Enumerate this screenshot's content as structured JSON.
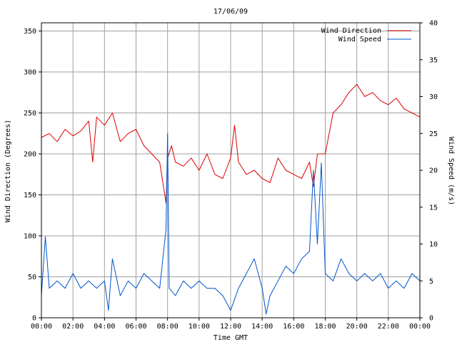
{
  "chart_data": {
    "type": "line",
    "title": "17/06/09",
    "xlabel": "Time GMT",
    "ylabel_left": "Wind Direction (Degrees)",
    "ylabel_right": "Wind Speed (m/s)",
    "x_unit": "hours GMT",
    "xlim": [
      0,
      24
    ],
    "ylim_left": [
      0,
      360
    ],
    "ylim_right": [
      0,
      40
    ],
    "x_tick_labels": [
      "00:00",
      "02:00",
      "04:00",
      "06:00",
      "08:00",
      "10:00",
      "12:00",
      "14:00",
      "16:00",
      "18:00",
      "20:00",
      "22:00",
      "00:00"
    ],
    "y_left_tick_labels": [
      "0",
      "50",
      "100",
      "150",
      "200",
      "250",
      "300",
      "350"
    ],
    "y_right_tick_labels": [
      "0",
      "5",
      "10",
      "15",
      "20",
      "25",
      "30",
      "35",
      "40"
    ],
    "grid": true,
    "legend_position": "top-right",
    "series": [
      {
        "name": "Wind Direction",
        "axis": "left",
        "color": "#dd0000",
        "x": [
          0,
          0.5,
          1,
          1.5,
          2,
          2.5,
          3,
          3.25,
          3.5,
          4,
          4.5,
          5,
          5.5,
          6,
          6.5,
          7,
          7.5,
          7.9,
          8,
          8.25,
          8.5,
          9,
          9.5,
          10,
          10.5,
          11,
          11.5,
          12,
          12.25,
          12.5,
          13,
          13.5,
          14,
          14.5,
          15,
          15.5,
          16,
          16.5,
          17,
          17.25,
          17.5,
          18,
          18.5,
          19,
          19.5,
          20,
          20.5,
          21,
          21.5,
          22,
          22.5,
          23,
          23.5,
          24
        ],
        "values": [
          220,
          225,
          215,
          230,
          222,
          228,
          240,
          190,
          245,
          235,
          250,
          215,
          225,
          230,
          210,
          200,
          190,
          140,
          195,
          210,
          190,
          185,
          195,
          180,
          200,
          175,
          170,
          195,
          235,
          190,
          175,
          180,
          170,
          165,
          195,
          180,
          175,
          170,
          190,
          160,
          200,
          200,
          250,
          260,
          275,
          285,
          270,
          275,
          265,
          260,
          268,
          255,
          250,
          245
        ]
      },
      {
        "name": "Wind Speed",
        "axis": "right",
        "color": "#0055cc",
        "x": [
          0,
          0.25,
          0.5,
          1,
          1.5,
          2,
          2.5,
          3,
          3.5,
          4,
          4.25,
          4.5,
          5,
          5.5,
          6,
          6.5,
          7,
          7.5,
          7.9,
          8,
          8.1,
          8.5,
          9,
          9.5,
          10,
          10.5,
          11,
          11.5,
          12,
          12.5,
          13,
          13.5,
          14,
          14.25,
          14.5,
          15,
          15.5,
          16,
          16.5,
          17,
          17.25,
          17.5,
          17.75,
          18,
          18.5,
          19,
          19.5,
          20,
          20.5,
          21,
          21.5,
          22,
          22.5,
          23,
          23.5,
          24
        ],
        "values": [
          3,
          11,
          4,
          5,
          4,
          6,
          4,
          5,
          4,
          5,
          1,
          8,
          3,
          5,
          4,
          6,
          5,
          4,
          12,
          25,
          4,
          3,
          5,
          4,
          5,
          4,
          4,
          3,
          1,
          4,
          6,
          8,
          4,
          0.5,
          3,
          5,
          7,
          6,
          8,
          9,
          20,
          10,
          21,
          6,
          5,
          8,
          6,
          5,
          6,
          5,
          6,
          4,
          5,
          4,
          6,
          5
        ]
      }
    ]
  }
}
